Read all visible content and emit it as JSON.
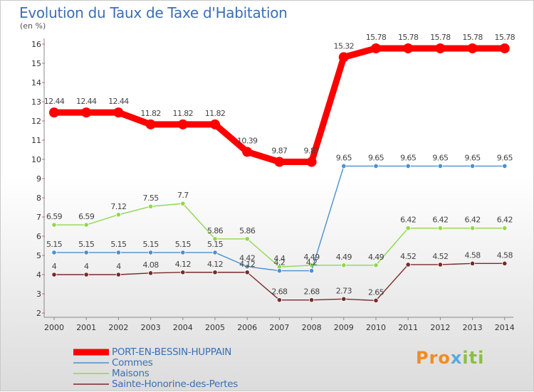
{
  "title": "Evolution du Taux de Taxe d'Habitation",
  "unit": "(en %)",
  "logo": {
    "text_p": "Pro",
    "text_x": "x",
    "text_iti": "iti"
  },
  "chart_data": {
    "type": "line",
    "x": [
      "2000",
      "2001",
      "2002",
      "2003",
      "2004",
      "2005",
      "2006",
      "2007",
      "2008",
      "2009",
      "2010",
      "2011",
      "2012",
      "2013",
      "2014"
    ],
    "ylim": [
      2,
      16
    ],
    "yticks": [
      2,
      3,
      4,
      5,
      6,
      7,
      8,
      9,
      10,
      11,
      12,
      13,
      14,
      15,
      16
    ],
    "grid": false,
    "legend": "bottom-left",
    "series": [
      {
        "name": "PORT-EN-BESSIN-HUPPAIN",
        "color": "#ff0000",
        "values": [
          12.44,
          12.44,
          12.44,
          11.82,
          11.82,
          11.82,
          10.39,
          9.87,
          9.87,
          15.32,
          15.78,
          15.78,
          15.78,
          15.78,
          15.78
        ],
        "labels": [
          "12.44",
          "12.44",
          "12.44",
          "11.82",
          "11.82",
          "11.82",
          "10.39",
          "9.87",
          "9.87",
          "15.32",
          "15.78",
          "15.78",
          "15.78",
          "15.78",
          "15.78"
        ]
      },
      {
        "name": "Commes",
        "color": "#4a90d0",
        "values": [
          5.15,
          5.15,
          5.15,
          5.15,
          5.15,
          5.15,
          4.42,
          4.2,
          4.2,
          9.65,
          9.65,
          9.65,
          9.65,
          9.65,
          9.65
        ],
        "labels": [
          "5.15",
          "5.15",
          "5.15",
          "5.15",
          "5.15",
          "5.15",
          "4.42",
          "4.2",
          "4.2",
          "9.65",
          "9.65",
          "9.65",
          "9.65",
          "9.65",
          "9.65"
        ]
      },
      {
        "name": "Maisons",
        "color": "#8fd94a",
        "values": [
          6.59,
          6.59,
          7.12,
          7.55,
          7.7,
          5.86,
          5.86,
          4.4,
          4.49,
          4.49,
          4.49,
          6.42,
          6.42,
          6.42,
          6.42
        ],
        "labels": [
          "6.59",
          "6.59",
          "7.12",
          "7.55",
          "7.7",
          "5.86",
          "5.86",
          "4.4",
          "4.49",
          "4.49",
          "4.49",
          "6.42",
          "6.42",
          "6.42",
          "6.42"
        ]
      },
      {
        "name": "Sainte-Honorine-des-Pertes",
        "color": "#7a2a2a",
        "values": [
          4,
          4,
          4,
          4.08,
          4.12,
          4.12,
          4.12,
          2.68,
          2.68,
          2.73,
          2.65,
          4.52,
          4.52,
          4.58,
          4.58
        ],
        "labels": [
          "4",
          "4",
          "4",
          "4.08",
          "4.12",
          "4.12",
          "4.12",
          "2.68",
          "2.68",
          "2.73",
          "2.65",
          "4.52",
          "4.52",
          "4.58",
          "4.58"
        ]
      }
    ]
  }
}
